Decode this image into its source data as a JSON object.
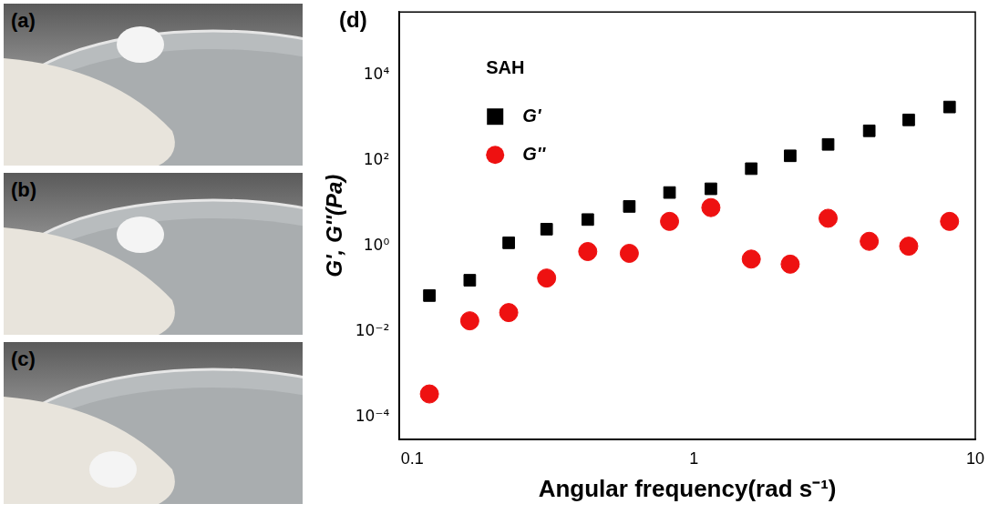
{
  "panels": [
    {
      "label": "(a)"
    },
    {
      "label": "(b)"
    },
    {
      "label": "(c)"
    }
  ],
  "chart_data": {
    "type": "scatter",
    "panel_label": "(d)",
    "annotation": "SAH",
    "x_label": "Angular frequency(rad s⁻¹)",
    "y_label": "G', G''(Pa)",
    "log": true,
    "grid": false,
    "legend": "upper left",
    "xlim": [
      0.09,
      10
    ],
    "xticks": [
      0.1,
      1,
      10
    ],
    "ylim": [
      3e-05,
      300000
    ],
    "yticks": [
      {
        "value": 0.0001,
        "label": "10⁻⁴"
      },
      {
        "value": 0.01,
        "label": "10⁻²"
      },
      {
        "value": 1,
        "label": "10⁰"
      },
      {
        "value": 100,
        "label": "10²"
      },
      {
        "value": 10000,
        "label": "10⁴"
      }
    ],
    "x": [
      0.115,
      0.16,
      0.22,
      0.3,
      0.42,
      0.59,
      0.82,
      1.15,
      1.6,
      2.2,
      3.0,
      4.2,
      5.8,
      8.1
    ],
    "series": [
      {
        "name": "G'",
        "color": "#000000",
        "marker": "square",
        "values": [
          0.07,
          0.16,
          1.2,
          2.5,
          4.2,
          8.5,
          18,
          22,
          65,
          130,
          240,
          500,
          900,
          1800
        ]
      },
      {
        "name": "G''",
        "color": "#ee1111",
        "marker": "circle",
        "values": [
          0.00035,
          0.018,
          0.028,
          0.18,
          0.75,
          0.68,
          3.8,
          8,
          0.5,
          0.38,
          4.5,
          1.3,
          1.0,
          3.8
        ]
      }
    ]
  }
}
